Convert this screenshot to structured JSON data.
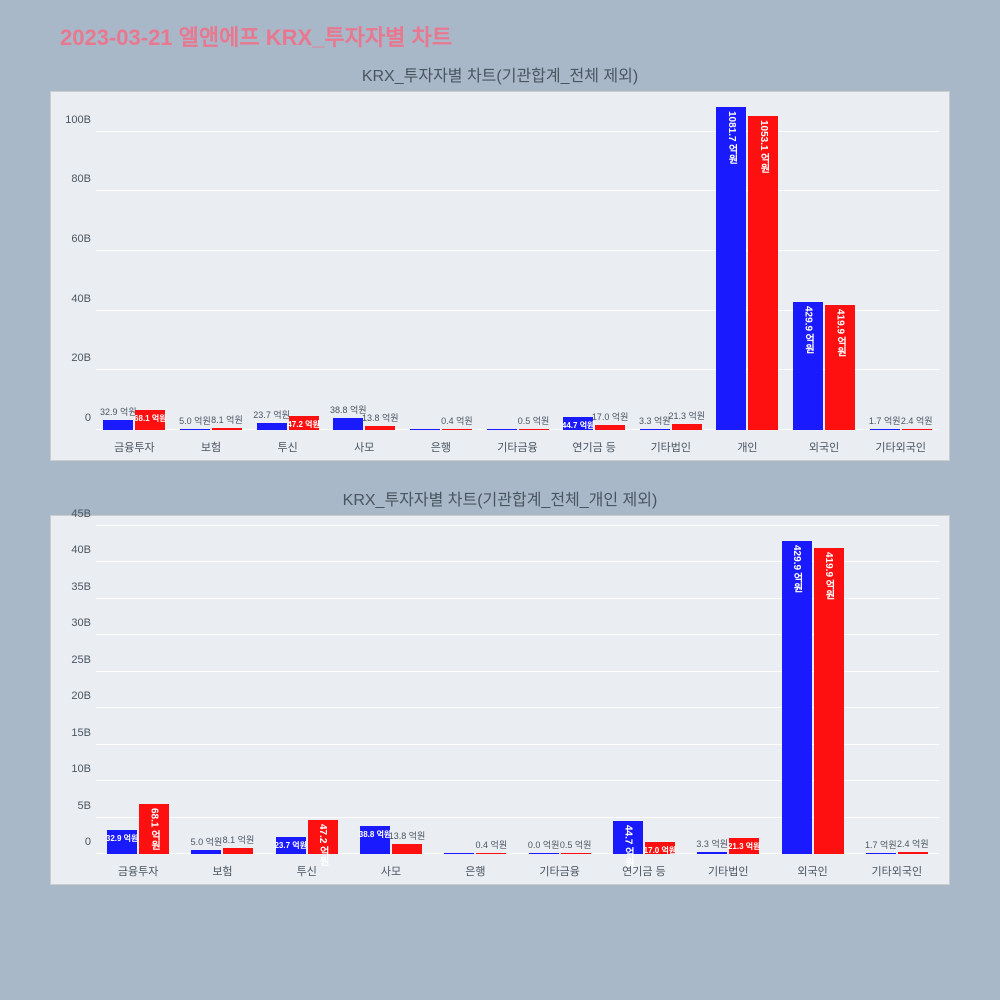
{
  "main_title": "2023-03-21 엘앤에프 KRX_투자자별 차트",
  "colors": {
    "blue": "#1a1aff",
    "red": "#ff1010",
    "bg_page": "#a8b8c8",
    "bg_plot": "#eaeef3",
    "grid": "#ffffff",
    "text": "#4a5560",
    "title": "#e87890"
  },
  "chart1": {
    "title": "KRX_투자자별 차트(기관합계_전체 제외)",
    "ylim": [
      0,
      110
    ],
    "yticks": [
      0,
      20,
      40,
      60,
      80,
      100
    ],
    "ytick_labels": [
      "0",
      "20B",
      "40B",
      "60B",
      "80B",
      "100B"
    ],
    "categories": [
      "금융투자",
      "보험",
      "투신",
      "사모",
      "은행",
      "기타금융",
      "연기금 등",
      "기타법인",
      "개인",
      "외국인",
      "기타외국인"
    ],
    "series": [
      {
        "color_key": "blue",
        "values": [
          3.29,
          0.5,
          2.37,
          3.88,
          0,
          0,
          4.47,
          0.33,
          108.17,
          42.99,
          0.17
        ],
        "labels": [
          "32.9 억원",
          "5.0 억원",
          "23.7 억원",
          "38.8 억원",
          "",
          "",
          "44.7 억원",
          "3.3 억원",
          "1081.7 억원",
          "429.9 억원",
          "1.7 억원"
        ],
        "label_mode": [
          "out",
          "out",
          "out",
          "out",
          "",
          "",
          "in-h",
          "out",
          "in-v",
          "in-v",
          "out"
        ]
      },
      {
        "color_key": "red",
        "values": [
          6.81,
          0.81,
          4.72,
          1.38,
          0.04,
          0.05,
          1.7,
          2.13,
          105.31,
          41.99,
          0.24
        ],
        "labels": [
          "68.1 억원",
          "8.1 억원",
          "47.2 억원",
          "13.8 억원",
          "0.4 억원",
          "0.5 억원",
          "17.0 억원",
          "21.3 억원",
          "1053.1 억원",
          "419.9 억원",
          "2.4 억원"
        ],
        "label_mode": [
          "in-h",
          "out",
          "in-h",
          "out",
          "out",
          "out",
          "out",
          "out",
          "in-v",
          "in-v",
          "out"
        ]
      }
    ]
  },
  "chart2": {
    "title": "KRX_투자자별 차트(기관합계_전체_개인 제외)",
    "ylim": [
      0,
      45
    ],
    "yticks": [
      0,
      5,
      10,
      15,
      20,
      25,
      30,
      35,
      40,
      45
    ],
    "ytick_labels": [
      "0",
      "5B",
      "10B",
      "15B",
      "20B",
      "25B",
      "30B",
      "35B",
      "40B",
      "45B"
    ],
    "categories": [
      "금융투자",
      "보험",
      "투신",
      "사모",
      "은행",
      "기타금융",
      "연기금 등",
      "기타법인",
      "외국인",
      "기타외국인"
    ],
    "series": [
      {
        "color_key": "blue",
        "values": [
          3.29,
          0.5,
          2.37,
          3.88,
          0,
          0.0,
          4.47,
          0.33,
          42.99,
          0.17
        ],
        "labels": [
          "32.9 억원",
          "5.0 억원",
          "23.7 억원",
          "38.8 억원",
          "",
          "0.0 억원",
          "44.7 억원",
          "3.3 억원",
          "429.9 억원",
          "1.7 억원"
        ],
        "label_mode": [
          "in-h",
          "out",
          "in-h",
          "in-h",
          "",
          "out",
          "in-v",
          "out",
          "in-v",
          "out"
        ]
      },
      {
        "color_key": "red",
        "values": [
          6.81,
          0.81,
          4.72,
          1.38,
          0.04,
          0.05,
          1.7,
          2.13,
          41.99,
          0.24
        ],
        "labels": [
          "68.1 억원",
          "8.1 억원",
          "47.2 억원",
          "13.8 억원",
          "0.4 억원",
          "0.5 억원",
          "17.0 억원",
          "21.3 억원",
          "419.9 억원",
          "2.4 억원"
        ],
        "label_mode": [
          "in-v",
          "out",
          "in-v",
          "out",
          "out",
          "out",
          "in-h",
          "in-h",
          "in-v",
          "out"
        ]
      }
    ]
  }
}
